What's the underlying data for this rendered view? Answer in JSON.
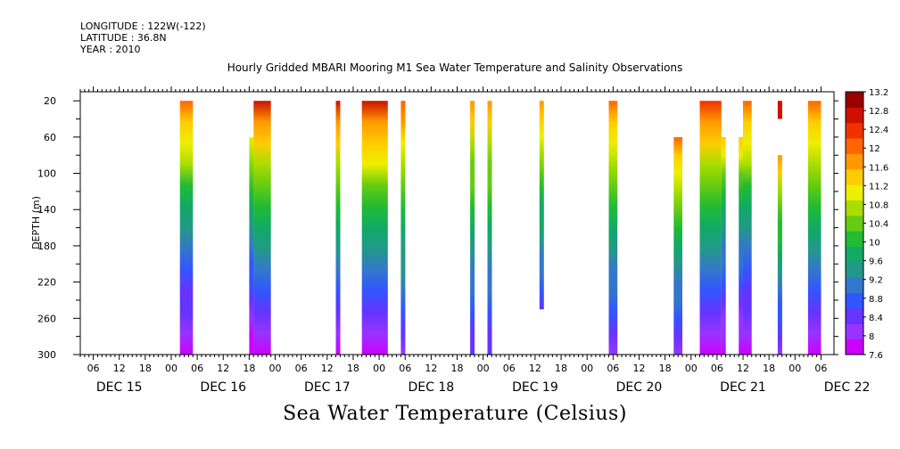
{
  "header": {
    "longitude": "LONGITUDE : 122W(-122)",
    "latitude": "LATITUDE : 36.8N",
    "year": "YEAR : 2010"
  },
  "chart_data": {
    "type": "heatmap",
    "title": "Hourly Gridded MBARI Mooring M1 Sea Water Temperature and Salinity Observations",
    "colorbar_label": "Sea Water Temperature (Celsius)",
    "ylabel": "DEPTH (m)",
    "y_ticks": [
      20,
      60,
      100,
      140,
      180,
      220,
      260,
      300
    ],
    "ylim": [
      300,
      10
    ],
    "y_inverted": true,
    "xlim_hours": [
      0,
      174
    ],
    "x_hour_ticks": [
      "06",
      "12",
      "18",
      "00",
      "06",
      "12",
      "18",
      "00",
      "06",
      "12",
      "18",
      "00",
      "06",
      "12",
      "18",
      "00",
      "06",
      "12",
      "18",
      "00",
      "06",
      "12",
      "18",
      "00",
      "06",
      "12",
      "18",
      "00",
      "06"
    ],
    "day_labels": [
      "DEC 15",
      "DEC 16",
      "DEC 17",
      "DEC 18",
      "DEC 19",
      "DEC 20",
      "DEC 21",
      "DEC 22"
    ],
    "colorbar_ticks": [
      "13.2",
      "12.8",
      "12.4",
      "12",
      "11.6",
      "11.2",
      "10.8",
      "10.4",
      "10",
      "9.6",
      "9.2",
      "8.8",
      "8.4",
      "8",
      "7.6"
    ],
    "colorbar_range": [
      7.6,
      13.2
    ],
    "colorbar_colors": [
      "#cc00ff",
      "#9933ff",
      "#6633ff",
      "#3355ff",
      "#3377cc",
      "#229988",
      "#11aa66",
      "#22bb33",
      "#66cc11",
      "#aadd00",
      "#eeee00",
      "#ffcc00",
      "#ff9900",
      "#ff6600",
      "#ee3300",
      "#cc1100",
      "#990000"
    ],
    "columns": [
      {
        "day": "DEC 16",
        "hour": "02-05",
        "depth": [
          20,
          300
        ],
        "surface_temp": 12.2,
        "bottom_temp": 7.7
      },
      {
        "day": "DEC 16",
        "hour": "18-19",
        "depth": [
          60,
          300
        ],
        "surface_temp": 11.2,
        "bottom_temp": 7.7
      },
      {
        "day": "DEC 16",
        "hour": "19-23",
        "depth": [
          20,
          300
        ],
        "surface_temp": 12.6,
        "bottom_temp": 7.7
      },
      {
        "day": "DEC 17",
        "hour": "14-15",
        "depth": [
          20,
          300
        ],
        "surface_temp": 12.6,
        "bottom_temp": 7.7
      },
      {
        "day": "DEC 17",
        "hour": "20-02",
        "depth": [
          20,
          300
        ],
        "surface_temp": 12.6,
        "bottom_temp": 7.8
      },
      {
        "day": "DEC 18",
        "hour": "05-06",
        "depth": [
          20,
          300
        ],
        "surface_temp": 12.2,
        "bottom_temp": 8.2
      },
      {
        "day": "DEC 18",
        "hour": "21-22",
        "depth": [
          20,
          300
        ],
        "surface_temp": 11.8,
        "bottom_temp": 8.3
      },
      {
        "day": "DEC 19",
        "hour": "01-02",
        "depth": [
          20,
          300
        ],
        "surface_temp": 11.8,
        "bottom_temp": 8.3
      },
      {
        "day": "DEC 19",
        "hour": "13-14",
        "depth": [
          20,
          250
        ],
        "surface_temp": 11.8,
        "bottom_temp": 8.5
      },
      {
        "day": "DEC 20",
        "hour": "05-07",
        "depth": [
          20,
          300
        ],
        "surface_temp": 11.9,
        "bottom_temp": 8.2
      },
      {
        "day": "DEC 20",
        "hour": "20-22",
        "depth": [
          60,
          300
        ],
        "surface_temp": 11.9,
        "bottom_temp": 8.2
      },
      {
        "day": "DEC 21",
        "hour": "02-07",
        "depth": [
          20,
          300
        ],
        "surface_temp": 12.5,
        "bottom_temp": 7.7
      },
      {
        "day": "DEC 21",
        "hour": "07-08",
        "depth": [
          60,
          300
        ],
        "surface_temp": 11.5,
        "bottom_temp": 7.7
      },
      {
        "day": "DEC 21",
        "hour": "11-12",
        "depth": [
          60,
          300
        ],
        "surface_temp": 11.5,
        "bottom_temp": 7.7
      },
      {
        "day": "DEC 21",
        "hour": "12-14",
        "depth": [
          20,
          300
        ],
        "surface_temp": 12.2,
        "bottom_temp": 7.7
      },
      {
        "day": "DEC 21",
        "hour": "20-21",
        "depth": [
          20,
          40
        ],
        "surface_temp": 12.6,
        "bottom_temp": 12.6
      },
      {
        "day": "DEC 21",
        "hour": "20-21",
        "depth": [
          80,
          300
        ],
        "surface_temp": 11.8,
        "bottom_temp": 8.2
      },
      {
        "day": "DEC 22",
        "hour": "03-06",
        "depth": [
          20,
          300
        ],
        "surface_temp": 12.2,
        "bottom_temp": 7.8
      }
    ]
  }
}
